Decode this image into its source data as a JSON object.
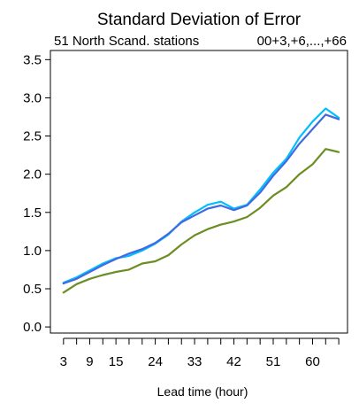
{
  "chart_data": {
    "type": "line",
    "title": "Standard Deviation of Error",
    "subtitle_left": "51 North Scand. stations",
    "subtitle_right": "00+3,+6,...,+66",
    "xlabel": "Lead time (hour)",
    "ylabel": "",
    "xlim": [
      0,
      68
    ],
    "ylim": [
      -0.08,
      3.62
    ],
    "x_ticks_minor": [
      3,
      6,
      9,
      12,
      15,
      18,
      21,
      24,
      27,
      30,
      33,
      36,
      39,
      42,
      45,
      48,
      51,
      54,
      57,
      60,
      63,
      66
    ],
    "x_tick_labels": [
      "3",
      "9",
      "15",
      "24",
      "33",
      "42",
      "51",
      "60"
    ],
    "x_tick_label_values": [
      3,
      9,
      15,
      24,
      33,
      42,
      51,
      60
    ],
    "y_tick_values": [
      0.0,
      0.5,
      1.0,
      1.5,
      2.0,
      2.5,
      3.0,
      3.5
    ],
    "y_tick_labels": [
      "0.0",
      "0.5",
      "1.0",
      "1.5",
      "2.0",
      "2.5",
      "3.0",
      "3.5"
    ],
    "grid": false,
    "x": [
      3,
      6,
      9,
      12,
      15,
      18,
      21,
      24,
      27,
      30,
      33,
      36,
      39,
      42,
      45,
      48,
      51,
      54,
      57,
      60,
      63,
      66
    ],
    "series": [
      {
        "color": "#00bfff",
        "values": [
          0.58,
          0.65,
          0.74,
          0.83,
          0.9,
          0.93,
          1.0,
          1.09,
          1.21,
          1.38,
          1.5,
          1.6,
          1.64,
          1.55,
          1.6,
          1.8,
          2.02,
          2.2,
          2.48,
          2.69,
          2.86,
          2.74
        ]
      },
      {
        "color": "#4169e1",
        "values": [
          0.57,
          0.63,
          0.72,
          0.81,
          0.89,
          0.96,
          1.02,
          1.1,
          1.22,
          1.37,
          1.46,
          1.55,
          1.59,
          1.53,
          1.59,
          1.76,
          1.98,
          2.17,
          2.4,
          2.59,
          2.78,
          2.72
        ]
      },
      {
        "color": "#6b8e23",
        "values": [
          0.45,
          0.56,
          0.63,
          0.68,
          0.72,
          0.75,
          0.83,
          0.86,
          0.94,
          1.08,
          1.2,
          1.28,
          1.34,
          1.38,
          1.44,
          1.56,
          1.72,
          1.83,
          2.0,
          2.13,
          2.33,
          2.29
        ]
      }
    ]
  }
}
